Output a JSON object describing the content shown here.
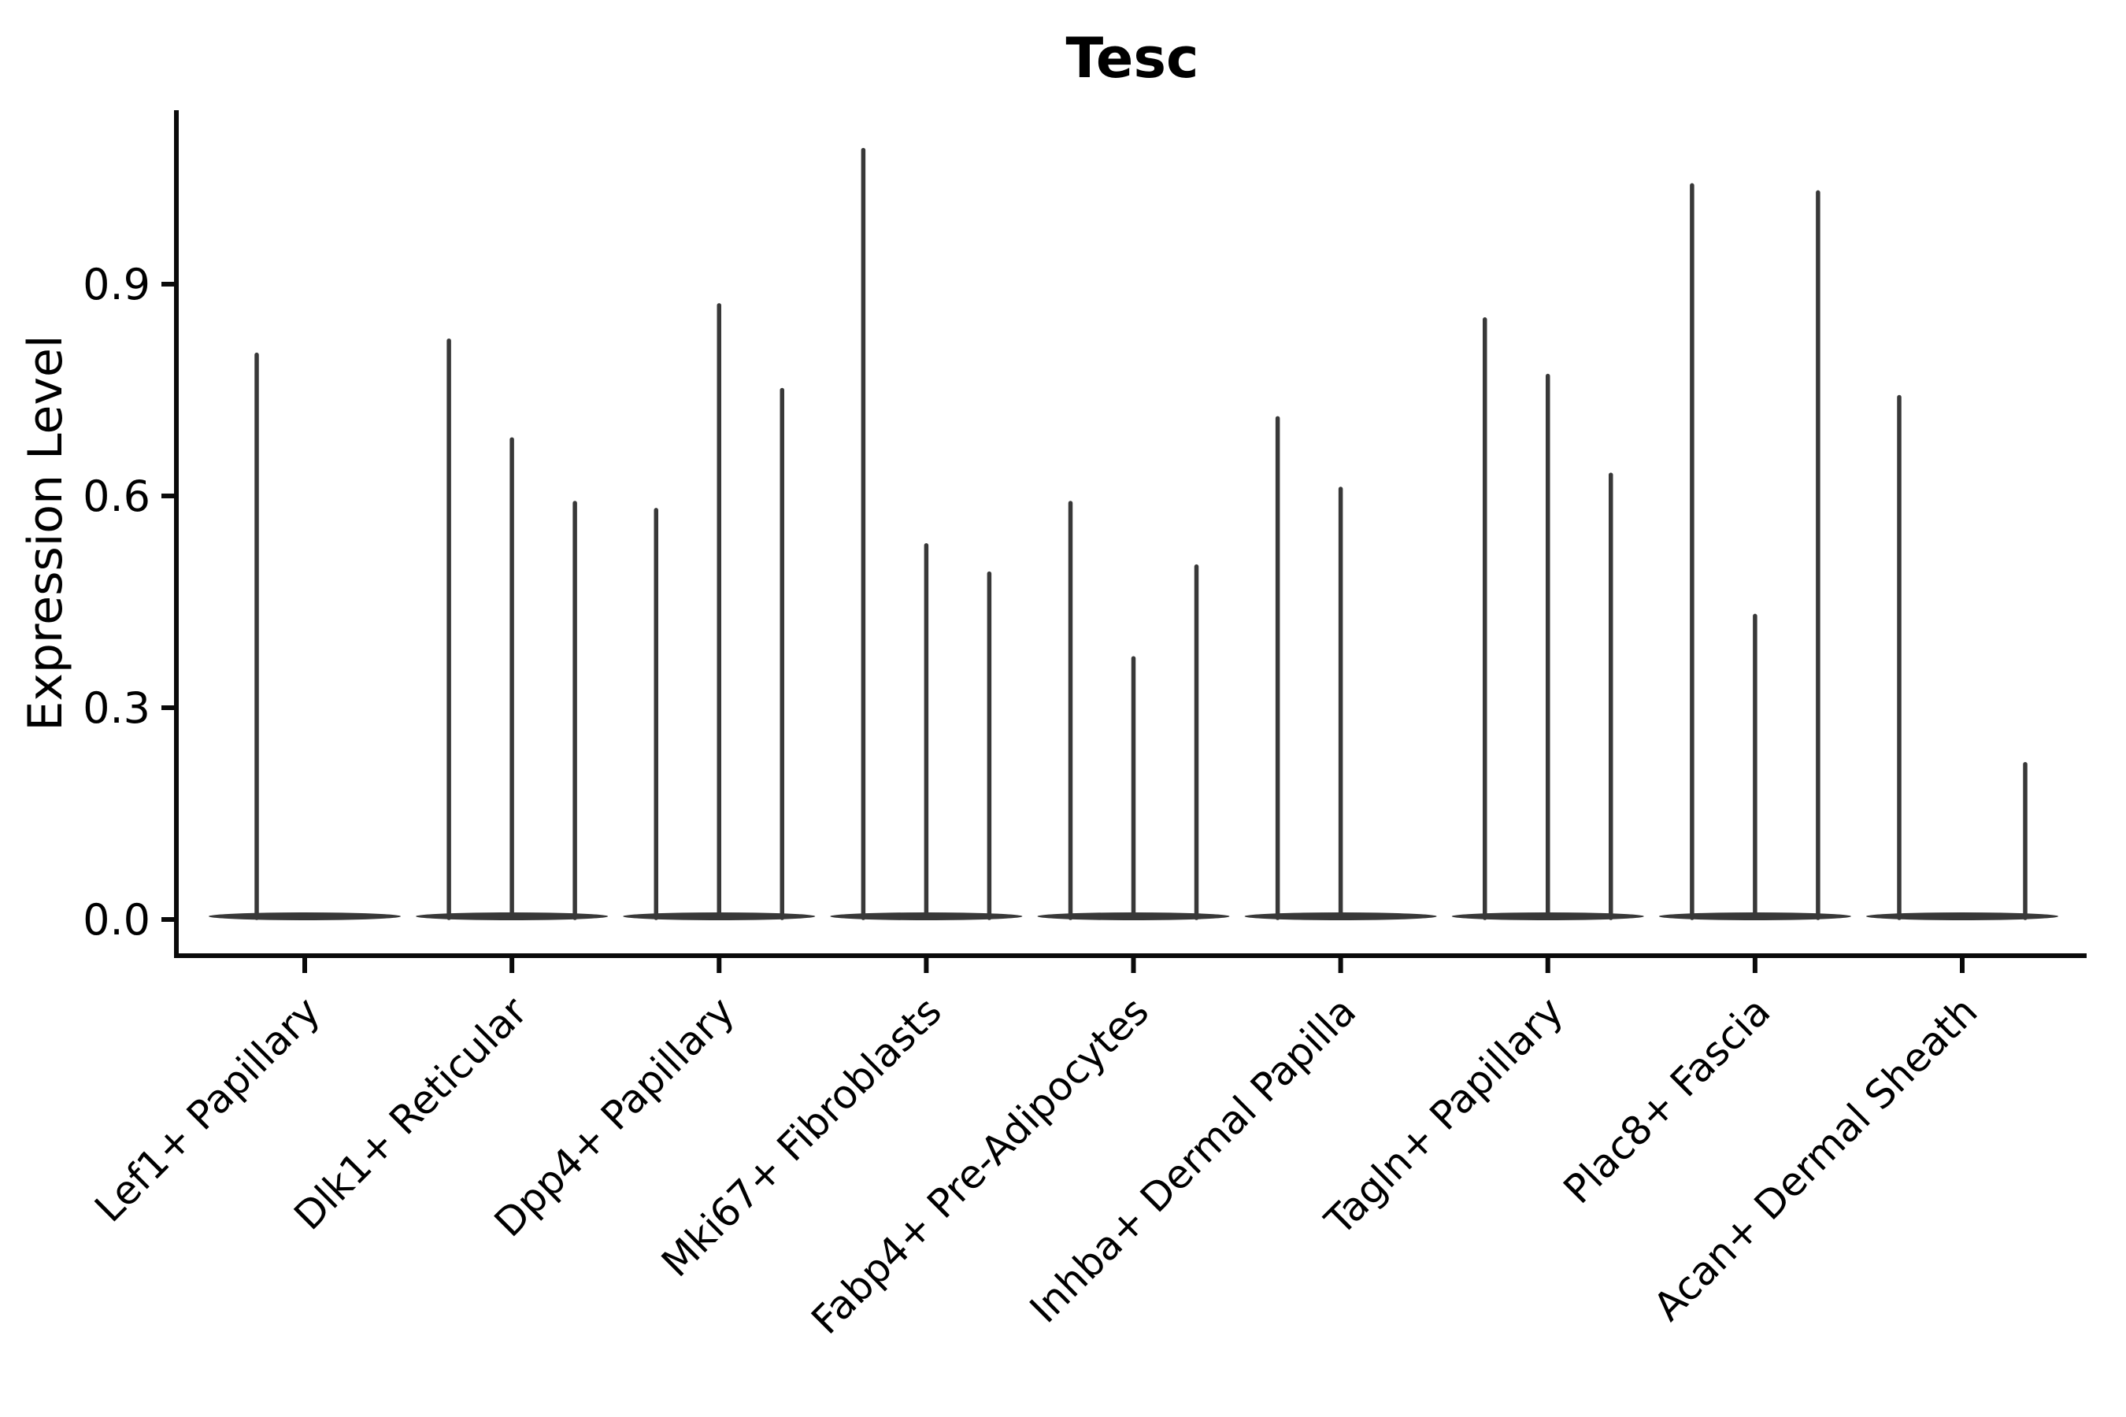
{
  "chart_data": {
    "type": "violin",
    "title": "Tesc",
    "ylabel": "Expression Level",
    "xlabel": "",
    "yticks": [
      "0.0",
      "0.3",
      "0.6",
      "0.9"
    ],
    "ytick_values": [
      0.0,
      0.3,
      0.6,
      0.9
    ],
    "ylim": [
      -0.05,
      1.15
    ],
    "legend": "none",
    "grid": false,
    "violin_color": "#383838",
    "axis_color": "#0a0a0a",
    "categories": [
      "Lef1+ Papillary",
      "Dlk1+ Reticular",
      "Dpp4+ Papillary",
      "Mki67+ Fibroblasts",
      "Fabp4+ Pre-Adipocytes",
      "Inhba+ Dermal Papilla",
      "Tagln+ Papillary",
      "Plac8+ Fascia",
      "Acan+ Dermal Sheath"
    ],
    "groups": [
      {
        "category": "Lef1+ Papillary",
        "spikes": [
          {
            "dx": -61,
            "max": 0.8
          }
        ]
      },
      {
        "category": "Dlk1+ Reticular",
        "spikes": [
          {
            "dx": -80,
            "max": 0.82
          },
          {
            "dx": 0,
            "max": 0.68
          },
          {
            "dx": 80,
            "max": 0.59
          }
        ]
      },
      {
        "category": "Dpp4+ Papillary",
        "spikes": [
          {
            "dx": -80,
            "max": 0.58
          },
          {
            "dx": 0,
            "max": 0.87
          },
          {
            "dx": 80,
            "max": 0.75
          }
        ]
      },
      {
        "category": "Mki67+ Fibroblasts",
        "spikes": [
          {
            "dx": -80,
            "max": 1.09
          },
          {
            "dx": 0,
            "max": 0.53
          },
          {
            "dx": 80,
            "max": 0.49
          }
        ]
      },
      {
        "category": "Fabp4+ Pre-Adipocytes",
        "spikes": [
          {
            "dx": -80,
            "max": 0.59
          },
          {
            "dx": 0,
            "max": 0.37
          },
          {
            "dx": 80,
            "max": 0.5
          }
        ]
      },
      {
        "category": "Inhba+ Dermal Papilla",
        "spikes": [
          {
            "dx": -80,
            "max": 0.71
          },
          {
            "dx": 0,
            "max": 0.61
          }
        ]
      },
      {
        "category": "Tagln+ Papillary",
        "spikes": [
          {
            "dx": -80,
            "max": 0.85
          },
          {
            "dx": 0,
            "max": 0.77
          },
          {
            "dx": 80,
            "max": 0.63
          }
        ]
      },
      {
        "category": "Plac8+ Fascia",
        "spikes": [
          {
            "dx": -80,
            "max": 1.04
          },
          {
            "dx": 0,
            "max": 0.43
          },
          {
            "dx": 80,
            "max": 1.03
          }
        ]
      },
      {
        "category": "Acan+ Dermal Sheath",
        "spikes": [
          {
            "dx": -80,
            "max": 0.74
          },
          {
            "dx": 80,
            "max": 0.22
          }
        ]
      }
    ]
  }
}
